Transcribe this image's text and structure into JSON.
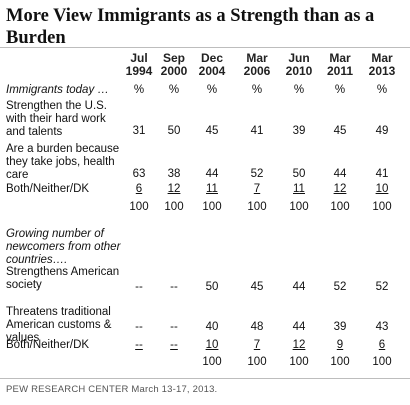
{
  "title": "More View Immigrants as a Strength than as a Burden",
  "source": "PEW RESEARCH CENTER March 13-17, 2013.",
  "chart_data": {
    "type": "table",
    "columns": [
      {
        "month": "Jul",
        "year": "1994"
      },
      {
        "month": "Sep",
        "year": "2000"
      },
      {
        "month": "Dec",
        "year": "2004"
      },
      {
        "month": "Mar",
        "year": "2006"
      },
      {
        "month": "Jun",
        "year": "2010"
      },
      {
        "month": "Mar",
        "year": "2011"
      },
      {
        "month": "Mar",
        "year": "2013"
      }
    ],
    "sections": [
      {
        "prompt": "Immigrants today …",
        "rows": [
          {
            "label": "",
            "cells": [
              "%",
              "%",
              "%",
              "%",
              "%",
              "%",
              "%"
            ],
            "underline": false
          },
          {
            "label": "Strengthen the U.S. with their hard work and talents",
            "cells": [
              "31",
              "50",
              "45",
              "41",
              "39",
              "45",
              "49"
            ],
            "underline": false
          },
          {
            "label": "Are a burden because they take jobs, health care",
            "cells": [
              "63",
              "38",
              "44",
              "52",
              "50",
              "44",
              "41"
            ],
            "underline": false
          },
          {
            "label": "Both/Neither/DK",
            "cells": [
              "6",
              "12",
              "11",
              "7",
              "11",
              "12",
              "10"
            ],
            "underline": true
          },
          {
            "label": "",
            "cells": [
              "100",
              "100",
              "100",
              "100",
              "100",
              "100",
              "100"
            ],
            "underline": false
          }
        ]
      },
      {
        "prompt": "Growing number of newcomers from other countries….",
        "rows": [
          {
            "label": "Strengthens American society",
            "cells": [
              "--",
              "--",
              "50",
              "45",
              "44",
              "52",
              "52"
            ],
            "underline": false
          },
          {
            "label": "Threatens traditional American customs & values",
            "cells": [
              "--",
              "--",
              "40",
              "48",
              "44",
              "39",
              "43"
            ],
            "underline": false
          },
          {
            "label": "Both/Neither/DK",
            "cells": [
              "--",
              "--",
              "10",
              "7",
              "12",
              "9",
              "6"
            ],
            "underline": true
          },
          {
            "label": "",
            "cells": [
              "",
              "",
              "100",
              "100",
              "100",
              "100",
              "100"
            ],
            "underline": false
          }
        ]
      }
    ]
  }
}
